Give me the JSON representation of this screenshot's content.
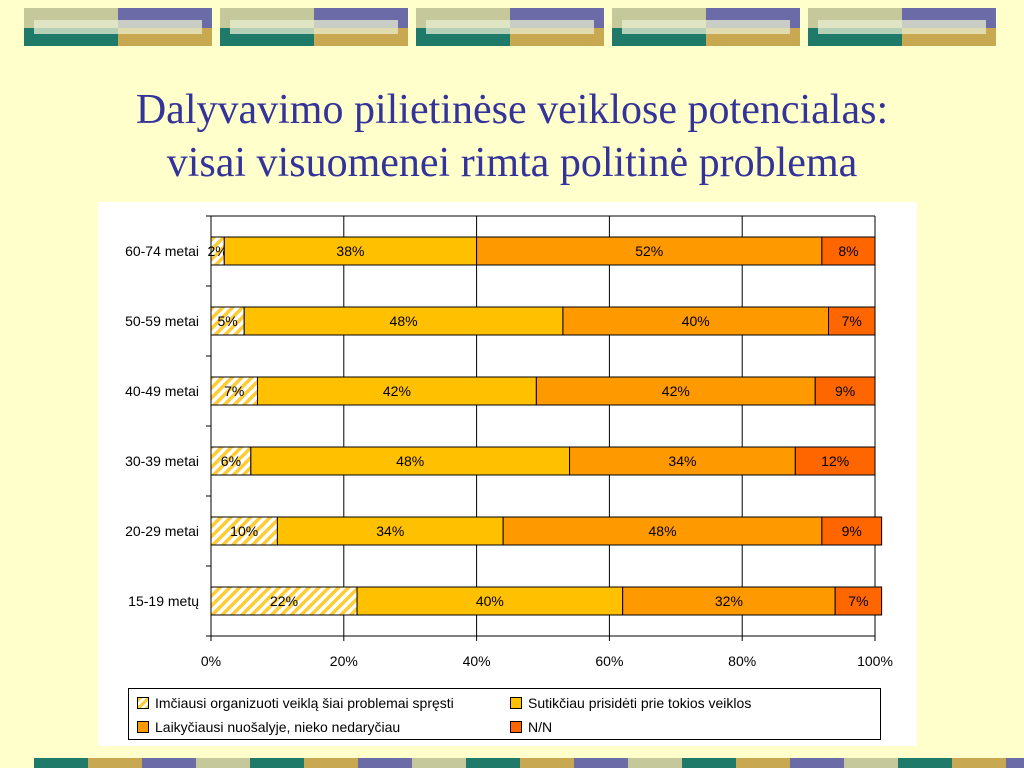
{
  "title": {
    "line1": "Dalyvavimo pilietinėse veiklose potencialas:",
    "line2": "visai visuomenei rimta politinė problema"
  },
  "colors": {
    "background": "#ffffcc",
    "title": "#333399",
    "series": [
      "#ffcc33",
      "#ffc000",
      "#ff9900",
      "#ff6600"
    ]
  },
  "chart_data": {
    "type": "bar",
    "orientation": "horizontal",
    "stacking": "percent",
    "categories": [
      "60-74 metai",
      "50-59 metai",
      "40-49 metai",
      "30-39 metai",
      "20-29 metai",
      "15-19 metų"
    ],
    "series": [
      {
        "name": "Imčiausi organizuoti veiklą šiai problemai spręsti",
        "values": [
          2,
          5,
          7,
          6,
          10,
          22
        ],
        "labels": [
          "2%",
          "5%",
          "7%",
          "6%",
          "10%",
          "22%"
        ],
        "pattern": "hatched"
      },
      {
        "name": "Sutikčiau prisidėti prie tokios veiklos",
        "values": [
          38,
          48,
          42,
          48,
          34,
          40
        ],
        "labels": [
          "38%",
          "48%",
          "42%",
          "48%",
          "34%",
          "40%"
        ]
      },
      {
        "name": "Laikyčiausi nuošalyje, nieko nedaryčiau",
        "values": [
          52,
          40,
          42,
          34,
          48,
          32
        ],
        "labels": [
          "52%",
          "40%",
          "42%",
          "34%",
          "48%",
          "32%"
        ]
      },
      {
        "name": "N/N",
        "values": [
          8,
          7,
          9,
          12,
          9,
          7
        ],
        "labels": [
          "8%",
          "7%",
          "9%",
          "12%",
          "9%",
          "7%"
        ]
      }
    ],
    "xlim": [
      0,
      100
    ],
    "xticks": [
      0,
      20,
      40,
      60,
      80,
      100
    ],
    "xtick_labels": [
      "0%",
      "20%",
      "40%",
      "60%",
      "80%",
      "100%"
    ],
    "grid": true,
    "legend_position": "bottom"
  }
}
